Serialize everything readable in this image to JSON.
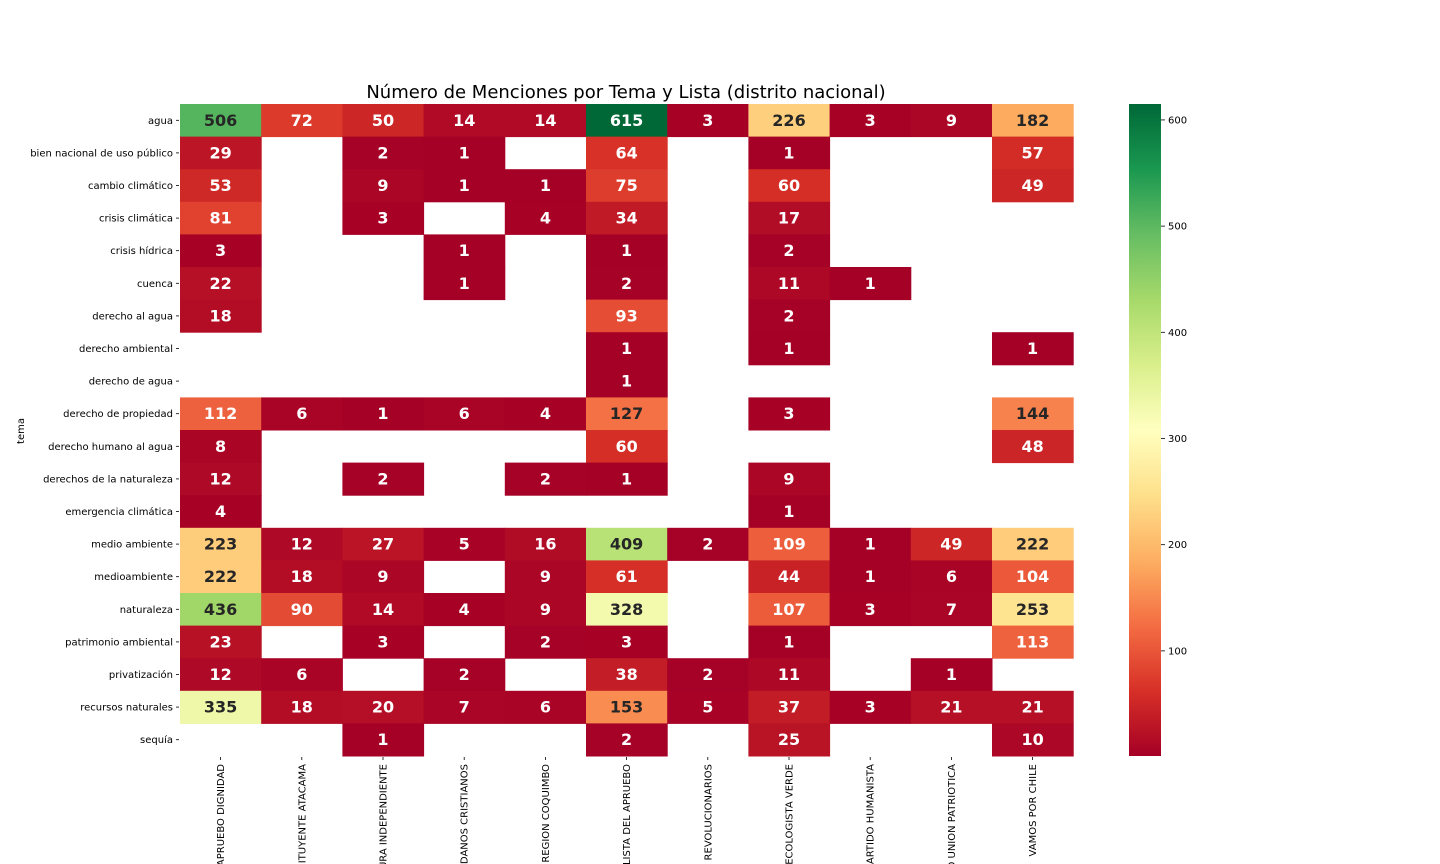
{
  "chart_data": {
    "type": "heatmap",
    "title": "Número de Menciones por Tema y Lista (distrito nacional)",
    "ylabel": "tema",
    "xlabel": "",
    "rows": [
      "agua",
      "bien nacional de uso público",
      "cambio climático",
      "crisis climática",
      "crisis hídrica",
      "cuenca",
      "derecho al agua",
      "derecho ambiental",
      "derecho de agua",
      "derecho de propiedad",
      "derecho humano al agua",
      "derechos de la naturaleza",
      "emergencia climática",
      "medio ambiente",
      "medioambiente",
      "naturaleza",
      "patrimonio ambiental",
      "privatización",
      "recursos naturales",
      "sequía"
    ],
    "columns": [
      "APRUEBO DIGNIDAD",
      "ITUYENTE ATACAMA",
      "URA INDEPENDIENTE",
      "DANOS CRISTIANOS",
      "REGION COQUIMBO",
      "LISTA DEL APRUEBO",
      "S REVOLUCIONARIOS",
      "ECOLOGISTA VERDE",
      "ARTIDO HUMANISTA",
      "D UNION PATRIOTICA",
      "VAMOS POR CHILE"
    ],
    "values": [
      [
        506,
        72,
        50,
        14,
        14,
        615,
        3,
        226,
        3,
        9,
        182
      ],
      [
        29,
        null,
        2,
        1,
        null,
        64,
        null,
        1,
        null,
        null,
        57
      ],
      [
        53,
        null,
        9,
        1,
        1,
        75,
        null,
        60,
        null,
        null,
        49
      ],
      [
        81,
        null,
        3,
        null,
        4,
        34,
        null,
        17,
        null,
        null,
        null
      ],
      [
        3,
        null,
        null,
        1,
        null,
        1,
        null,
        2,
        null,
        null,
        null
      ],
      [
        22,
        null,
        null,
        1,
        null,
        2,
        null,
        11,
        1,
        null,
        null
      ],
      [
        18,
        null,
        null,
        null,
        null,
        93,
        null,
        2,
        null,
        null,
        null
      ],
      [
        null,
        null,
        null,
        null,
        null,
        1,
        null,
        1,
        null,
        null,
        1
      ],
      [
        null,
        null,
        null,
        null,
        null,
        1,
        null,
        null,
        null,
        null,
        null
      ],
      [
        112,
        6,
        1,
        6,
        4,
        127,
        null,
        3,
        null,
        null,
        144
      ],
      [
        8,
        null,
        null,
        null,
        null,
        60,
        null,
        null,
        null,
        null,
        48
      ],
      [
        12,
        null,
        2,
        null,
        2,
        1,
        null,
        9,
        null,
        null,
        null
      ],
      [
        4,
        null,
        null,
        null,
        null,
        null,
        null,
        1,
        null,
        null,
        null
      ],
      [
        223,
        12,
        27,
        5,
        16,
        409,
        2,
        109,
        1,
        49,
        222
      ],
      [
        222,
        18,
        9,
        null,
        9,
        61,
        null,
        44,
        1,
        6,
        104
      ],
      [
        436,
        90,
        14,
        4,
        9,
        328,
        null,
        107,
        3,
        7,
        253
      ],
      [
        23,
        null,
        3,
        null,
        2,
        3,
        null,
        1,
        null,
        null,
        113
      ],
      [
        12,
        6,
        null,
        2,
        null,
        38,
        2,
        11,
        null,
        1,
        null
      ],
      [
        335,
        18,
        20,
        7,
        6,
        153,
        5,
        37,
        3,
        21,
        21
      ],
      [
        null,
        null,
        1,
        null,
        null,
        2,
        null,
        25,
        null,
        null,
        10
      ]
    ],
    "colormap": "RdYlGn",
    "vmin": 1,
    "vmax": 615,
    "colorbar_ticks": [
      100,
      200,
      300,
      400,
      500,
      600
    ]
  }
}
